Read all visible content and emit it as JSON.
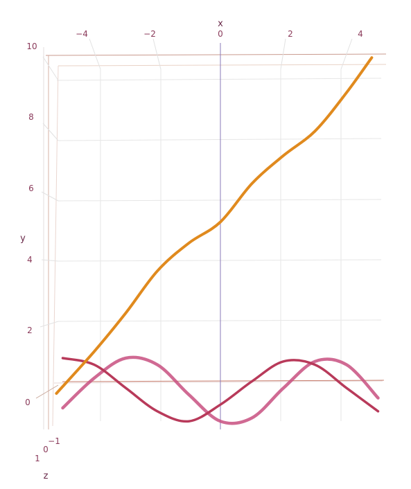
{
  "chart_data": {
    "type": "line3d",
    "x_axis": {
      "title": "x",
      "ticks": [
        "−4",
        "−2",
        "0",
        "2",
        "4"
      ],
      "range": [
        -5.3,
        5.3
      ]
    },
    "y_axis": {
      "title": "y",
      "ticks": [
        "0",
        "2",
        "4",
        "6",
        "8",
        "10"
      ],
      "range": [
        -0.5,
        10
      ]
    },
    "z_axis": {
      "title": "z",
      "ticks": [
        "−1",
        "0",
        "1"
      ]
    },
    "grid": true,
    "series": [
      {
        "color": "#e08a1e",
        "x": [
          -5.2,
          -4,
          -3,
          -2,
          -1,
          0,
          1,
          2,
          3,
          4,
          4.8
        ],
        "y": [
          0,
          1.2,
          2.3,
          3.5,
          4.3,
          4.9,
          6.0,
          6.8,
          7.5,
          8.6,
          9.6
        ]
      },
      {
        "color": "#b83a5a",
        "x": [
          -5,
          -4,
          -3,
          -2,
          -1,
          0,
          1,
          2,
          3,
          4,
          5
        ],
        "z": [
          1,
          0.8,
          0.1,
          -0.6,
          -0.9,
          -0.4,
          0.3,
          0.9,
          0.8,
          0.1,
          -0.6
        ]
      },
      {
        "color": "#c85080",
        "x": [
          -5,
          -4,
          -3,
          -2,
          -1,
          0,
          1,
          2,
          3,
          4,
          5
        ],
        "z": [
          -0.5,
          0.4,
          1,
          0.8,
          -0.1,
          -0.9,
          -0.8,
          0.1,
          0.9,
          0.8,
          -0.2
        ]
      }
    ]
  }
}
